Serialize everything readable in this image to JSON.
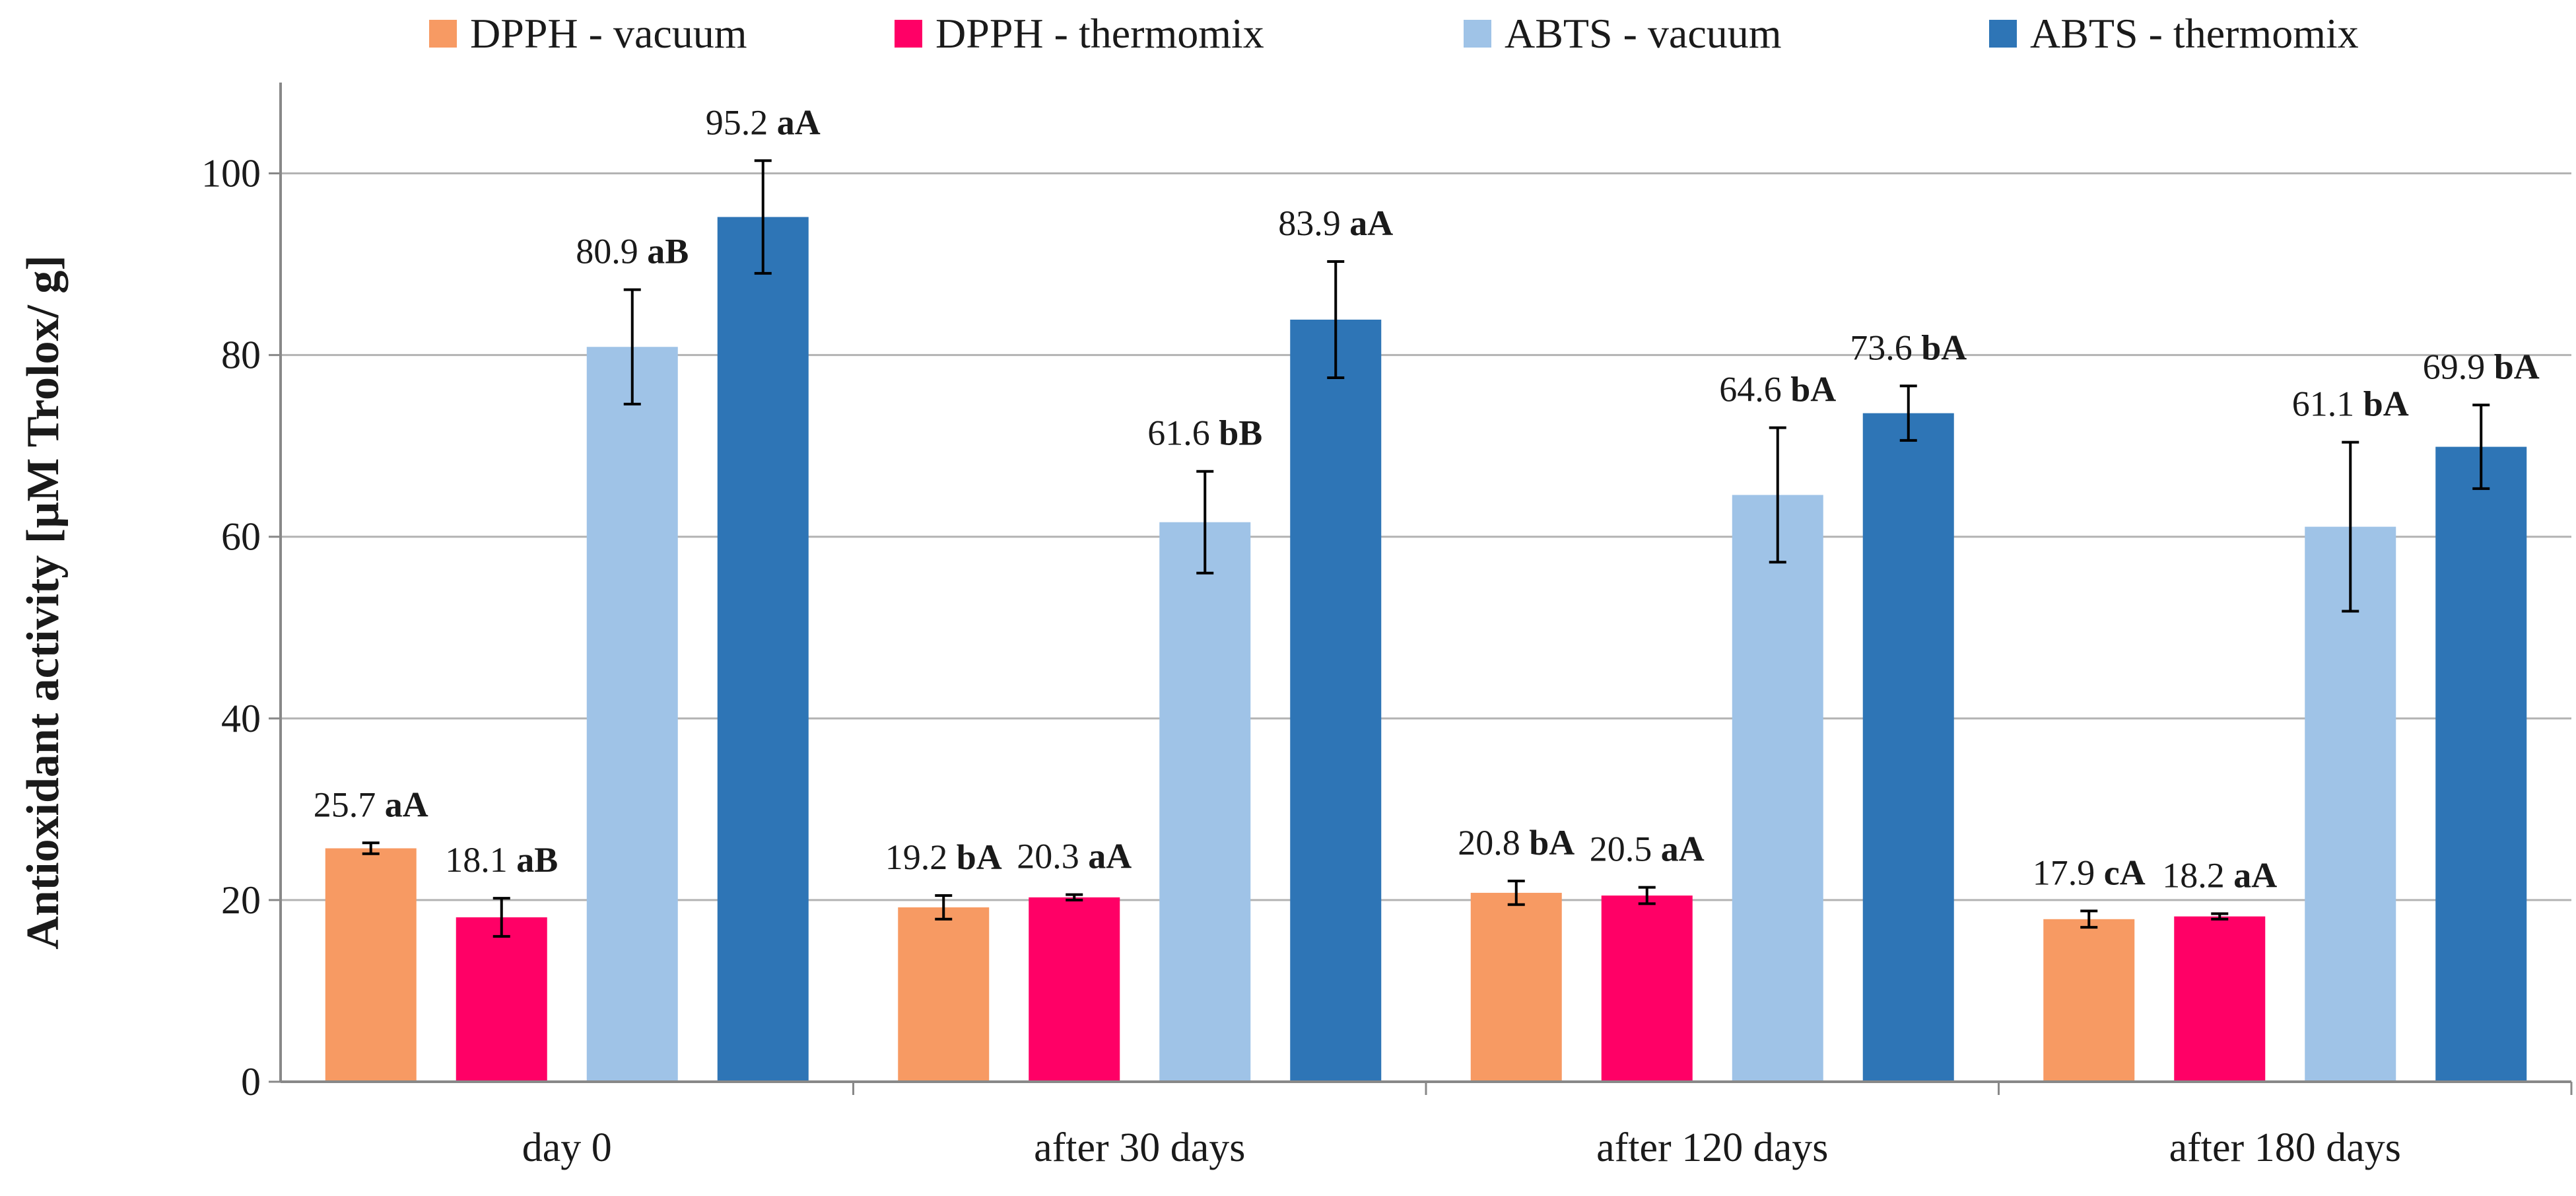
{
  "chart_data": {
    "type": "bar",
    "title": "",
    "xlabel": "",
    "ylabel": "Antioxidant activity  [µM Trolox/ g]",
    "ylim": [
      0,
      110
    ],
    "yticks": [
      0,
      20,
      40,
      60,
      80,
      100
    ],
    "grid": true,
    "legend_position": "top",
    "categories": [
      "day 0",
      "after 30 days",
      "after 120 days",
      "after 180 days"
    ],
    "series": [
      {
        "name": "DPPH - vacuum",
        "color": "#f79a63",
        "values": [
          25.7,
          19.2,
          20.8,
          17.9
        ],
        "errors": [
          0.6,
          1.3,
          1.3,
          0.9
        ],
        "labels": [
          {
            "value": "25.7",
            "sig": "aA"
          },
          {
            "value": "19.2",
            "sig": "bA"
          },
          {
            "value": "20.8",
            "sig": "bA"
          },
          {
            "value": "17.9",
            "sig": "cA"
          }
        ]
      },
      {
        "name": "DPPH - thermomix",
        "color": "#ff0066",
        "values": [
          18.1,
          20.3,
          20.5,
          18.2
        ],
        "errors": [
          2.1,
          0.3,
          0.9,
          0.3
        ],
        "labels": [
          {
            "value": "18.1",
            "sig": "aB"
          },
          {
            "value": "20.3",
            "sig": "aA"
          },
          {
            "value": "20.5",
            "sig": "aA"
          },
          {
            "value": "18.2",
            "sig": "aA"
          }
        ]
      },
      {
        "name": "ABTS - vacuum",
        "color": "#9fc3e7",
        "values": [
          80.9,
          61.6,
          64.6,
          61.1
        ],
        "errors": [
          6.3,
          5.6,
          7.4,
          9.3
        ],
        "labels": [
          {
            "value": "80.9",
            "sig": "aB"
          },
          {
            "value": "61.6",
            "sig": "bB"
          },
          {
            "value": "64.6",
            "sig": "bA"
          },
          {
            "value": "61.1",
            "sig": "bA"
          }
        ]
      },
      {
        "name": "ABTS - thermomix",
        "color": "#2e75b6",
        "values": [
          95.2,
          83.9,
          73.6,
          69.9
        ],
        "errors": [
          6.2,
          6.4,
          3.0,
          4.6
        ],
        "labels": [
          {
            "value": "95.2",
            "sig": "aA"
          },
          {
            "value": "83.9",
            "sig": "aA"
          },
          {
            "value": "73.6",
            "sig": "bA"
          },
          {
            "value": "69.9",
            "sig": "bA"
          }
        ]
      }
    ]
  }
}
